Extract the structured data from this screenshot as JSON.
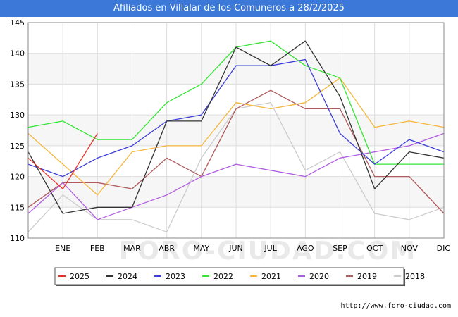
{
  "header": {
    "title": "Afiliados en Villalar de los Comuneros a 28/2/2025"
  },
  "watermark": "FORO-CIUDAD.COM",
  "footer": {
    "url": "http://www.foro-ciudad.com"
  },
  "chart_data": {
    "type": "line",
    "categories": [
      "",
      "ENE",
      "FEB",
      "MAR",
      "ABR",
      "MAY",
      "JUN",
      "JUL",
      "AGO",
      "SEP",
      "OCT",
      "NOV",
      "DIC"
    ],
    "ylim": [
      110,
      145
    ],
    "yticks": [
      110,
      115,
      120,
      125,
      130,
      135,
      140,
      145
    ],
    "grid": "horizontal",
    "legend_position": "bottom",
    "series": [
      {
        "name": "2025",
        "color": "#e8352b",
        "values": [
          123,
          118,
          127,
          null,
          null,
          null,
          null,
          null,
          null,
          null,
          null,
          null,
          null
        ]
      },
      {
        "name": "2024",
        "color": "#333333",
        "values": [
          124,
          114,
          115,
          115,
          129,
          129,
          141,
          138,
          142,
          133,
          118,
          124,
          123
        ]
      },
      {
        "name": "2023",
        "color": "#3c3cd8",
        "values": [
          122,
          120,
          123,
          125,
          129,
          130,
          138,
          138,
          139,
          127,
          122,
          126,
          124
        ]
      },
      {
        "name": "2022",
        "color": "#33e633",
        "values": [
          128,
          129,
          126,
          126,
          132,
          135,
          141,
          142,
          138,
          136,
          122,
          122,
          122
        ]
      },
      {
        "name": "2021",
        "color": "#f5b53b",
        "values": [
          127,
          122,
          117,
          124,
          125,
          125,
          132,
          131,
          132,
          136,
          128,
          129,
          128
        ]
      },
      {
        "name": "2020",
        "color": "#b05ce0",
        "values": [
          114,
          119,
          113,
          115,
          117,
          120,
          122,
          121,
          120,
          123,
          124,
          125,
          127
        ]
      },
      {
        "name": "2019",
        "color": "#b05a5a",
        "values": [
          115,
          119,
          119,
          118,
          123,
          120,
          131,
          134,
          131,
          131,
          120,
          120,
          114
        ]
      },
      {
        "name": "2018",
        "color": "#cccccc",
        "values": [
          111,
          117,
          113,
          113,
          111,
          123,
          131,
          132,
          121,
          124,
          114,
          113,
          115
        ]
      }
    ]
  }
}
